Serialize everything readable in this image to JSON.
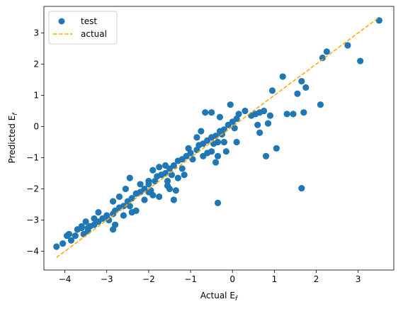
{
  "chart_data": {
    "type": "scatter",
    "xlabel": "Actual E",
    "xlabel_sub": "f",
    "ylabel": "Predicted E",
    "ylabel_sub": "f",
    "xlim": [
      -4.5,
      3.85
    ],
    "ylim": [
      -4.6,
      3.85
    ],
    "xticks": [
      -4,
      -3,
      -2,
      -1,
      0,
      1,
      2,
      3
    ],
    "yticks": [
      -4,
      -3,
      -2,
      -1,
      0,
      1,
      2,
      3
    ],
    "tick_labels_x": [
      "−4",
      "−3",
      "−2",
      "−1",
      "0",
      "1",
      "2",
      "3"
    ],
    "tick_labels_y": [
      "−4",
      "−3",
      "−2",
      "−1",
      "0",
      "1",
      "2",
      "3"
    ],
    "legend": {
      "placement": "upper-left",
      "entries": [
        "test",
        "actual"
      ]
    },
    "colors": {
      "test": "#1f77b4",
      "actual": "#ffa500"
    },
    "series": [
      {
        "name": "test",
        "kind": "scatter",
        "points": [
          [
            -4.2,
            -3.85
          ],
          [
            -4.05,
            -3.75
          ],
          [
            -3.9,
            -3.45
          ],
          [
            -3.85,
            -3.65
          ],
          [
            -3.75,
            -3.5
          ],
          [
            -3.7,
            -3.3
          ],
          [
            -3.6,
            -3.25
          ],
          [
            -3.55,
            -3.45
          ],
          [
            -3.45,
            -3.25
          ],
          [
            -3.4,
            -3.2
          ],
          [
            -3.3,
            -3.15
          ],
          [
            -3.2,
            -3.05
          ],
          [
            -3.1,
            -2.95
          ],
          [
            -3.0,
            -2.85
          ],
          [
            -2.95,
            -3.0
          ],
          [
            -2.85,
            -2.8
          ],
          [
            -2.8,
            -2.7
          ],
          [
            -2.7,
            -2.6
          ],
          [
            -2.6,
            -2.55
          ],
          [
            -2.5,
            -2.4
          ],
          [
            -2.45,
            -2.55
          ],
          [
            -2.4,
            -2.3
          ],
          [
            -2.3,
            -2.15
          ],
          [
            -2.2,
            -2.1
          ],
          [
            -2.1,
            -2.0
          ],
          [
            -2.0,
            -1.85
          ],
          [
            -1.95,
            -2.05
          ],
          [
            -1.85,
            -1.75
          ],
          [
            -1.8,
            -1.6
          ],
          [
            -1.7,
            -1.55
          ],
          [
            -1.6,
            -1.5
          ],
          [
            -1.5,
            -1.35
          ],
          [
            -1.45,
            -1.55
          ],
          [
            -1.4,
            -1.25
          ],
          [
            -1.3,
            -1.1
          ],
          [
            -1.2,
            -1.05
          ],
          [
            -1.1,
            -0.95
          ],
          [
            -1.0,
            -0.85
          ],
          [
            -0.95,
            -1.05
          ],
          [
            -0.85,
            -0.75
          ],
          [
            -0.8,
            -0.6
          ],
          [
            -0.7,
            -0.55
          ],
          [
            -0.6,
            -0.45
          ],
          [
            -0.5,
            -0.35
          ],
          [
            -0.45,
            -0.55
          ],
          [
            -0.4,
            -0.3
          ],
          [
            -0.3,
            -0.15
          ],
          [
            -0.2,
            -0.1
          ],
          [
            -0.1,
            0.05
          ],
          [
            0.0,
            0.15
          ],
          [
            0.05,
            -0.05
          ],
          [
            0.1,
            0.25
          ],
          [
            -0.5,
            0.45
          ],
          [
            -0.3,
            0.3
          ],
          [
            -0.05,
            0.7
          ],
          [
            0.3,
            0.5
          ],
          [
            0.45,
            0.35
          ],
          [
            0.55,
            0.4
          ],
          [
            0.65,
            0.45
          ],
          [
            0.75,
            0.5
          ],
          [
            0.9,
            0.35
          ],
          [
            0.95,
            1.15
          ],
          [
            1.2,
            1.6
          ],
          [
            1.3,
            0.4
          ],
          [
            1.45,
            0.4
          ],
          [
            1.55,
            1.05
          ],
          [
            1.65,
            1.45
          ],
          [
            1.7,
            0.45
          ],
          [
            1.75,
            1.25
          ],
          [
            2.1,
            0.7
          ],
          [
            2.15,
            2.2
          ],
          [
            2.25,
            2.4
          ],
          [
            2.75,
            2.6
          ],
          [
            3.05,
            2.1
          ],
          [
            3.5,
            3.4
          ],
          [
            0.6,
            0.05
          ],
          [
            0.65,
            -0.2
          ],
          [
            0.8,
            -0.95
          ],
          [
            1.05,
            -0.7
          ],
          [
            0.85,
            0.1
          ],
          [
            -0.35,
            -0.5
          ],
          [
            -0.2,
            -0.5
          ],
          [
            0.1,
            -0.5
          ],
          [
            -0.6,
            -0.85
          ],
          [
            -1.2,
            -1.35
          ],
          [
            -1.55,
            -1.75
          ],
          [
            -1.9,
            -2.2
          ],
          [
            -2.0,
            -2.1
          ],
          [
            -2.1,
            -2.35
          ],
          [
            -2.3,
            -2.7
          ],
          [
            -2.4,
            -2.75
          ],
          [
            -2.6,
            -2.85
          ],
          [
            -2.85,
            -3.3
          ],
          [
            -2.8,
            -3.15
          ],
          [
            -2.45,
            -1.65
          ],
          [
            -2.0,
            -1.75
          ],
          [
            -1.3,
            -1.65
          ],
          [
            -0.4,
            -1.15
          ],
          [
            -1.55,
            -1.9
          ],
          [
            -1.75,
            -2.25
          ],
          [
            -1.4,
            -2.35
          ],
          [
            -1.5,
            -2.0
          ],
          [
            -0.35,
            -0.95
          ],
          [
            -0.15,
            -0.8
          ],
          [
            -0.85,
            -0.35
          ],
          [
            -1.05,
            -0.7
          ],
          [
            -1.6,
            -1.25
          ],
          [
            -2.55,
            -2.0
          ],
          [
            -3.2,
            -2.75
          ],
          [
            -3.5,
            -3.05
          ],
          [
            -3.95,
            -3.5
          ],
          [
            1.65,
            -1.98
          ],
          [
            -0.35,
            -2.45
          ],
          [
            -1.35,
            -2.05
          ],
          [
            -1.15,
            -1.55
          ],
          [
            -0.7,
            -0.95
          ],
          [
            -0.25,
            -0.25
          ],
          [
            0.15,
            0.4
          ],
          [
            -0.65,
            0.45
          ],
          [
            -0.75,
            -0.15
          ],
          [
            -0.5,
            -0.8
          ],
          [
            -1.75,
            -1.3
          ],
          [
            -2.2,
            -1.85
          ],
          [
            -2.85,
            -2.4
          ],
          [
            -3.3,
            -2.95
          ],
          [
            -3.6,
            -3.2
          ],
          [
            -1.9,
            -1.4
          ],
          [
            -2.7,
            -2.25
          ],
          [
            -3.45,
            -3.35
          ]
        ]
      },
      {
        "name": "actual",
        "kind": "line",
        "style": "dashed",
        "x": [
          -4.2,
          3.5
        ],
        "y": [
          -4.2,
          3.5
        ]
      }
    ]
  }
}
